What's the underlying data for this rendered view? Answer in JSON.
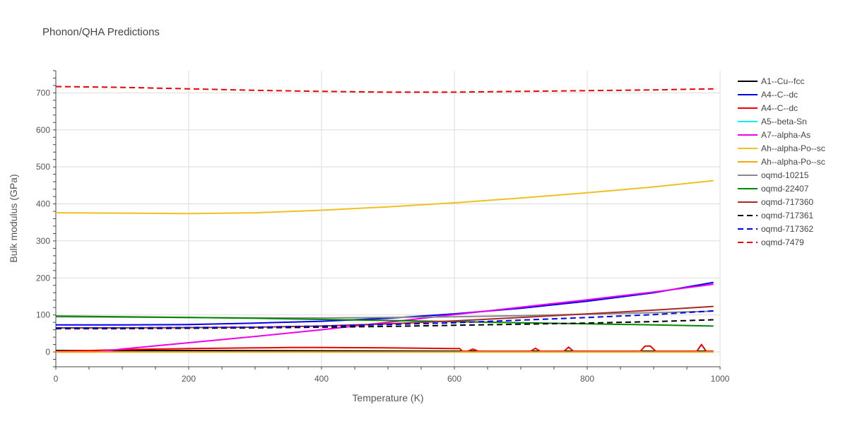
{
  "chart_data": {
    "type": "line",
    "title": "Phonon/QHA Predictions",
    "xlabel": "Temperature (K)",
    "ylabel": "Bulk modulus (GPa)",
    "xlim": [
      0,
      1000
    ],
    "ylim": [
      -40,
      760
    ],
    "xticks": [
      0,
      200,
      400,
      600,
      800,
      1000
    ],
    "yticks": [
      0,
      100,
      200,
      300,
      400,
      500,
      600,
      700
    ],
    "grid": true,
    "legend_position": "right",
    "series": [
      {
        "name": "A1--Cu--fcc",
        "color": "#000000",
        "dash": "solid",
        "x": [
          0,
          100,
          200,
          300,
          400,
          500,
          600,
          700,
          800,
          900,
          990
        ],
        "y": [
          4,
          4,
          4,
          3.5,
          3,
          2.5,
          2,
          2,
          2,
          2,
          2
        ]
      },
      {
        "name": "A4--C--dc",
        "color": "#0000ee",
        "dash": "solid",
        "x": [
          0,
          100,
          200,
          300,
          400,
          500,
          600,
          700,
          800,
          900,
          990
        ],
        "y": [
          73,
          73,
          74,
          78,
          83,
          91,
          103,
          118,
          137,
          160,
          188
        ]
      },
      {
        "name": "A4--C--dc",
        "color": "#ee0000",
        "dash": "solid",
        "x": [
          0,
          50,
          100,
          150,
          200,
          250,
          300,
          350,
          400,
          450,
          500,
          550,
          600,
          608,
          612,
          620,
          628,
          636,
          700,
          715,
          722,
          729,
          765,
          772,
          779,
          880,
          887,
          895,
          903,
          965,
          972,
          979,
          990
        ],
        "y": [
          2,
          4,
          6,
          8,
          9,
          10,
          11,
          12,
          12,
          11.5,
          11,
          10,
          9,
          9,
          2,
          2,
          8,
          2,
          2,
          2,
          10,
          2,
          2,
          13,
          2,
          2,
          16,
          16,
          2,
          2,
          20,
          2,
          2
        ]
      },
      {
        "name": "A5--beta-Sn",
        "color": "#00eeee",
        "dash": "solid",
        "x": [
          0,
          200,
          400,
          600,
          800,
          990
        ],
        "y": [
          0,
          0,
          0,
          0,
          0,
          0
        ]
      },
      {
        "name": "A7--alpha-As",
        "color": "#ee00ee",
        "dash": "solid",
        "x": [
          0,
          60,
          100,
          200,
          300,
          400,
          500,
          600,
          700,
          800,
          900,
          990
        ],
        "y": [
          0,
          0,
          8,
          25,
          42,
          60,
          80,
          101,
          121,
          141,
          162,
          183
        ]
      },
      {
        "name": "Ah--alpha-Po--sc",
        "color": "#f0c020",
        "dash": "solid",
        "x": [
          0,
          100,
          200,
          300,
          400,
          500,
          600,
          700,
          800,
          900,
          990
        ],
        "y": [
          376,
          375,
          374,
          376,
          383,
          392,
          403,
          416,
          430,
          446,
          463
        ]
      },
      {
        "name": "Ah--alpha-Po--sc",
        "color": "#ffa500",
        "dash": "solid",
        "x": [
          0,
          200,
          400,
          600,
          800,
          990
        ],
        "y": [
          0,
          0,
          0,
          0,
          0,
          0
        ]
      },
      {
        "name": "oqmd-10215",
        "color": "#888888",
        "dash": "solid",
        "x": [
          0,
          100,
          200,
          300,
          400,
          500,
          600,
          700,
          800,
          900,
          990
        ],
        "y": [
          95,
          94,
          93,
          92,
          92,
          93,
          95,
          98,
          102,
          106,
          110
        ]
      },
      {
        "name": "oqmd-22407",
        "color": "#008800",
        "dash": "solid",
        "x": [
          0,
          100,
          200,
          300,
          400,
          500,
          600,
          700,
          800,
          900,
          990
        ],
        "y": [
          97,
          95,
          93,
          91,
          88,
          85,
          82,
          79,
          76,
          73,
          70
        ]
      },
      {
        "name": "oqmd-717360",
        "color": "#a52a2a",
        "dash": "solid",
        "x": [
          0,
          100,
          200,
          300,
          400,
          500,
          600,
          700,
          800,
          900,
          990
        ],
        "y": [
          65,
          65,
          66,
          67,
          70,
          76,
          84,
          93,
          103,
          113,
          123
        ]
      },
      {
        "name": "oqmd-717361",
        "color": "#000000",
        "dash": "dash",
        "x": [
          0,
          100,
          200,
          300,
          400,
          500,
          600,
          700,
          800,
          900,
          990
        ],
        "y": [
          63,
          63,
          64,
          65,
          67,
          69,
          72,
          75,
          78,
          82,
          87
        ]
      },
      {
        "name": "oqmd-717362",
        "color": "#0000ee",
        "dash": "dash",
        "x": [
          0,
          100,
          200,
          300,
          400,
          500,
          600,
          700,
          800,
          900,
          990
        ],
        "y": [
          65,
          65,
          66,
          67,
          70,
          74,
          79,
          86,
          93,
          101,
          111
        ]
      },
      {
        "name": "oqmd-7479",
        "color": "#ee0000",
        "dash": "dash",
        "x": [
          0,
          100,
          200,
          300,
          400,
          500,
          600,
          700,
          800,
          900,
          990
        ],
        "y": [
          717,
          715,
          711,
          707,
          704,
          702,
          702,
          704,
          706,
          708,
          711
        ]
      }
    ]
  }
}
